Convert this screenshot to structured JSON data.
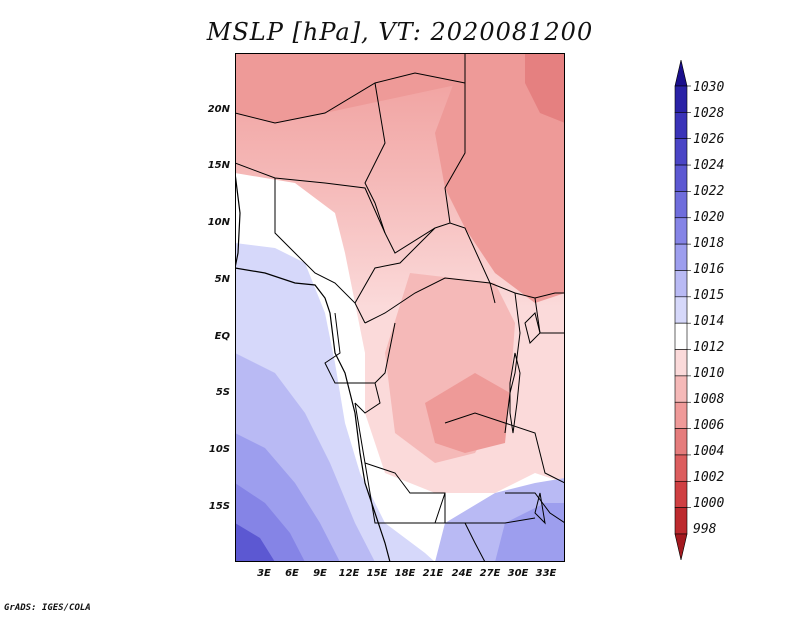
{
  "title": "MSLP [hPa], VT: 2020081200",
  "credit": "GrADS: IGES/COLA",
  "map": {
    "lat_labels": [
      "20N",
      "15N",
      "10N",
      "5N",
      "EQ",
      "5S",
      "10S",
      "15S"
    ],
    "lon_labels": [
      "3E",
      "6E",
      "9E",
      "12E",
      "15E",
      "18E",
      "21E",
      "24E",
      "27E",
      "30E",
      "33E"
    ]
  },
  "colorbar": {
    "labels": [
      "1030",
      "1028",
      "1026",
      "1024",
      "1022",
      "1020",
      "1018",
      "1016",
      "1015",
      "1014",
      "1012",
      "1010",
      "1008",
      "1006",
      "1004",
      "1002",
      "1000",
      "998"
    ],
    "colors": [
      "#1a0f8c",
      "#2a22a6",
      "#3a33b8",
      "#4a45c6",
      "#5c58d2",
      "#6f6ddc",
      "#8584e6",
      "#9d9eee",
      "#b9baf4",
      "#d6d8fa",
      "#ffffff",
      "#fbdada",
      "#f5b9b8",
      "#ef9a99",
      "#e57c7c",
      "#dc5d5e",
      "#cf3f42",
      "#bd2a2e",
      "#a3191f"
    ]
  }
}
